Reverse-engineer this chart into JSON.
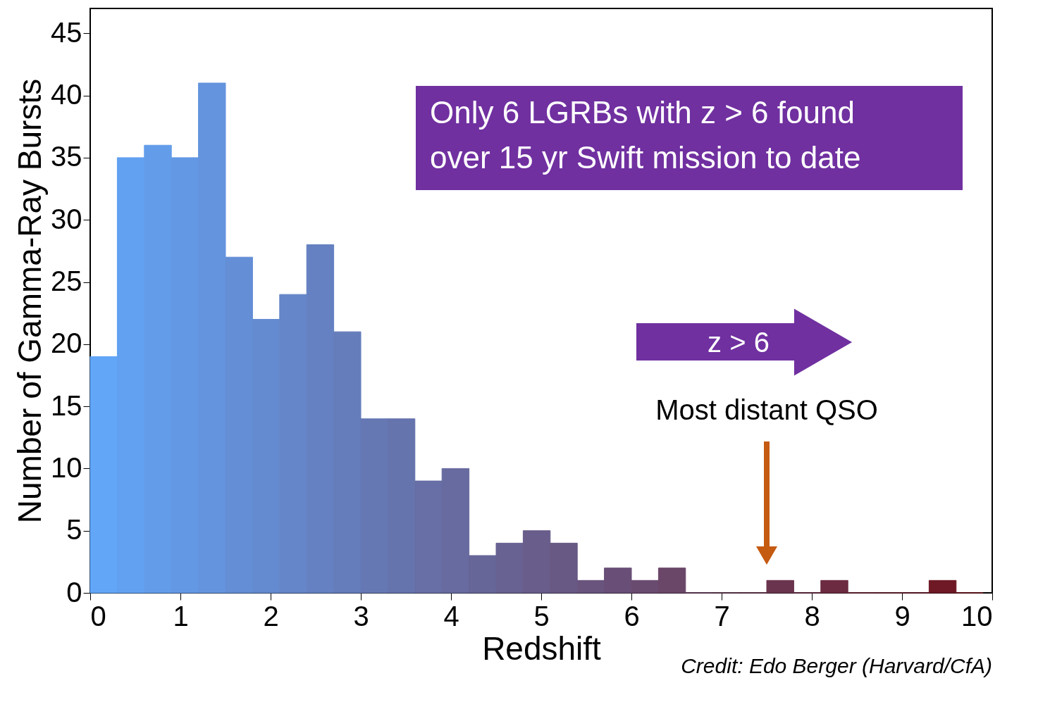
{
  "chart_data": {
    "type": "histogram",
    "xlabel": "Redshift",
    "ylabel": "Number of Gamma-Ray Bursts",
    "bins": [
      0,
      0.3,
      0.6,
      0.9,
      1.2,
      1.5,
      1.8,
      2.1,
      2.4,
      2.7,
      3.0,
      3.3,
      3.6,
      3.9,
      4.2,
      4.5,
      4.8,
      5.1,
      5.4,
      5.7,
      6.0,
      6.3,
      6.6,
      6.9,
      7.2,
      7.5,
      7.8,
      8.1,
      8.4,
      8.7,
      9.0,
      9.3,
      9.6,
      9.9
    ],
    "values": [
      19,
      35,
      36,
      35,
      41,
      27,
      22,
      24,
      28,
      21,
      14,
      14,
      9,
      10,
      3,
      4,
      5,
      4,
      1,
      2,
      1,
      2,
      0,
      0,
      0,
      1,
      0,
      1,
      0,
      0,
      0,
      1,
      0
    ],
    "colors": [
      "#62a6f8",
      "#62a1f1",
      "#639dea",
      "#6398e4",
      "#6494dd",
      "#648fd6",
      "#648bcf",
      "#6586c8",
      "#6581c2",
      "#657dbb",
      "#6678b4",
      "#6674ad",
      "#676fa6",
      "#676b9f",
      "#676699",
      "#686292",
      "#685d8b",
      "#685884",
      "#69547d",
      "#694f77",
      "#6a4b70",
      "#6a4669",
      "#6a4262",
      "#6b3d5b",
      "#6b3955",
      "#6b344e",
      "#6c2f47",
      "#6c2b40",
      "#6d2639",
      "#6d2232",
      "#6d1d2c",
      "#6e1925",
      "#6e141e"
    ],
    "xlim": [
      0,
      10
    ],
    "xticks": [
      0,
      1,
      2,
      3,
      4,
      5,
      6,
      7,
      8,
      9,
      10
    ],
    "ylim": [
      0,
      47
    ],
    "yticks": [
      0,
      5,
      10,
      15,
      20,
      25,
      30,
      35,
      40,
      45
    ],
    "grid": false,
    "annotations": [
      "Only 6 LGRBs with z > 6 found\nover 15 yr Swift mission to date",
      "z  > 6",
      {
        "text": "Most distant QSO",
        "x": 7.5,
        "y": 3
      },
      "Credit:  Edo Berger (Harvard/CfA)"
    ]
  }
}
